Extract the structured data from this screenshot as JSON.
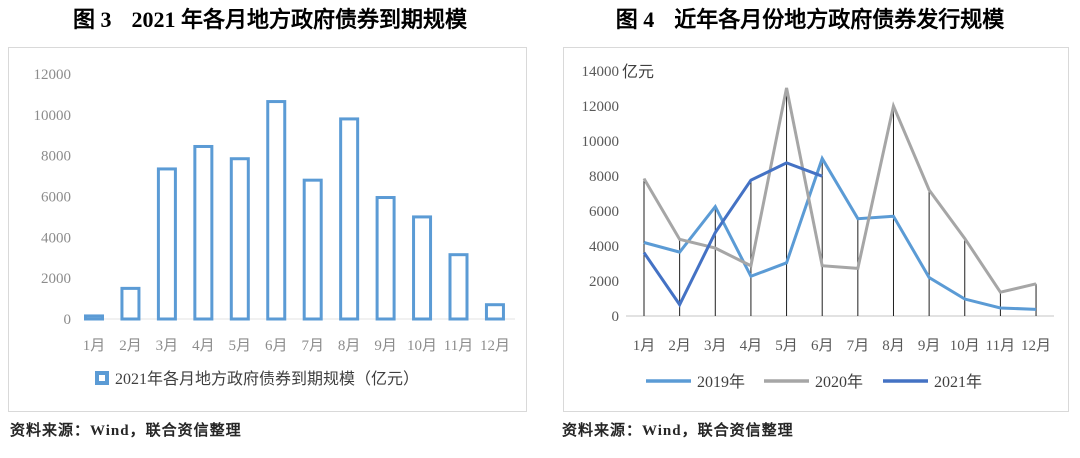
{
  "page": {
    "figures": [
      {
        "label": "图 3",
        "title": "2021 年各月地方政府债券到期规模",
        "source_note": "资料来源：Wind，联合资信整理"
      },
      {
        "label": "图 4",
        "title": "近年各月份地方政府债券发行规模",
        "source_note": "资料来源：Wind，联合资信整理"
      }
    ]
  },
  "chart_data": [
    {
      "type": "bar",
      "title": "2021 年各月地方政府债券到期规模",
      "categories": [
        "1月",
        "2月",
        "3月",
        "4月",
        "5月",
        "6月",
        "7月",
        "8月",
        "9月",
        "10月",
        "11月",
        "12月"
      ],
      "values": [
        150,
        1500,
        7350,
        8450,
        7850,
        10650,
        6800,
        9800,
        5950,
        5000,
        3150,
        700
      ],
      "legend": [
        "2021年各月地方政府债券到期规模（亿元）"
      ],
      "xlabel": "",
      "ylabel": "",
      "ylim": [
        0,
        12000
      ],
      "ytick_step": 2000,
      "grid": false,
      "legend_position": "bottom",
      "colors": {
        "bar_stroke": "#5b9bd5",
        "bar_fill": "#ffffff",
        "tick_text": "#8c8c8c",
        "axis_line": "#e3e3e3",
        "legend_text": "#3f3f3f"
      }
    },
    {
      "type": "line",
      "title": "近年各月份地方政府债券发行规模",
      "unit_label": "亿元",
      "categories": [
        "1月",
        "2月",
        "3月",
        "4月",
        "5月",
        "6月",
        "7月",
        "8月",
        "9月",
        "10月",
        "11月",
        "12月"
      ],
      "series": [
        {
          "name": "2019年",
          "color": "#5b9bd5",
          "values": [
            4200,
            3650,
            6250,
            2270,
            3040,
            9000,
            5560,
            5700,
            2200,
            970,
            460,
            380
          ]
        },
        {
          "name": "2020年",
          "color": "#a6a6a6",
          "values": [
            7850,
            4380,
            3880,
            2870,
            13030,
            2870,
            2720,
            12000,
            7200,
            4430,
            1360,
            1840
          ]
        },
        {
          "name": "2021年",
          "color": "#4472c4",
          "values": [
            3620,
            650,
            4770,
            7760,
            8750,
            7990,
            null,
            null,
            null,
            null,
            null,
            null
          ]
        }
      ],
      "drop_lines": true,
      "xlabel": "",
      "ylabel": "亿元",
      "ylim": [
        0,
        14000
      ],
      "ytick_step": 2000,
      "grid": false,
      "legend_position": "bottom",
      "colors": {
        "tick_text": "#595959",
        "axis_line": "#d9d9d9",
        "drop_line": "#1f1f1f",
        "unit_text": "#3f3f3f",
        "legend_text": "#3f3f3f"
      }
    }
  ]
}
